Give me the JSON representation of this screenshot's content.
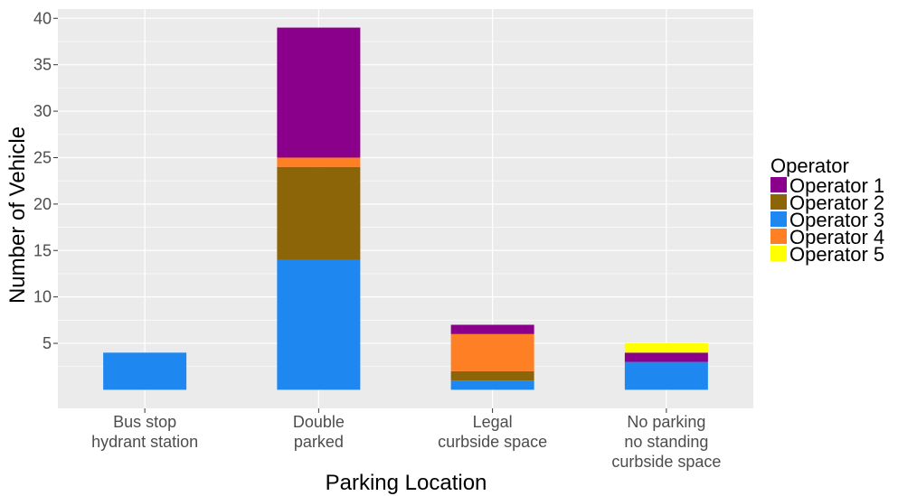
{
  "chart_data": {
    "type": "bar",
    "stacked": true,
    "title": "",
    "xlabel": "Parking Location",
    "ylabel": "Number of Vehicle",
    "ylim": [
      -2,
      41
    ],
    "yticks": [
      5,
      10,
      15,
      20,
      25,
      30,
      35,
      40
    ],
    "grid": true,
    "legend": {
      "title": "Operator",
      "placement": "right"
    },
    "categories": [
      [
        "Bus stop",
        "hydrant station"
      ],
      [
        "Double",
        "parked"
      ],
      [
        "Legal",
        "curbside space"
      ],
      [
        "No parking",
        "no standing",
        "curbside space"
      ]
    ],
    "series": [
      {
        "name": "Operator 1",
        "color": "#8b008b",
        "values": [
          0,
          14,
          1,
          1
        ]
      },
      {
        "name": "Operator 2",
        "color": "#8b6508",
        "values": [
          0,
          10,
          1,
          0
        ]
      },
      {
        "name": "Operator 3",
        "color": "#1e88f0",
        "values": [
          4,
          14,
          1,
          3
        ]
      },
      {
        "name": "Operator 4",
        "color": "#ff7f24",
        "values": [
          0,
          1,
          4,
          0
        ]
      },
      {
        "name": "Operator 5",
        "color": "#ffff00",
        "values": [
          0,
          0,
          0,
          1
        ]
      }
    ],
    "stack_order": [
      "Operator 3",
      "Operator 2",
      "Operator 4",
      "Operator 1",
      "Operator 5"
    ],
    "panel_color": "#ebebeb",
    "grid_color": "#ffffff"
  }
}
